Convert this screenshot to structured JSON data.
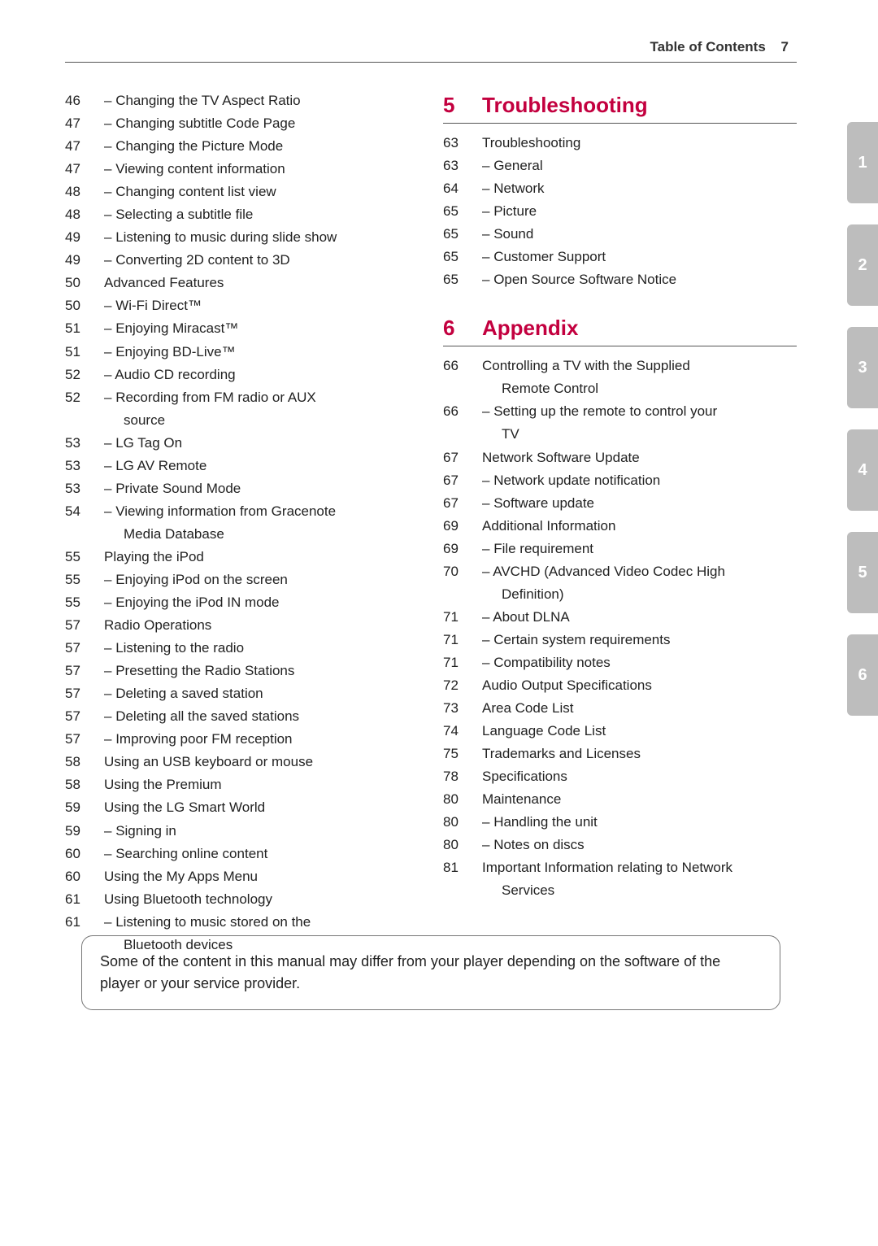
{
  "header": {
    "title": "Table of Contents",
    "page": "7"
  },
  "tabs": [
    "1",
    "2",
    "3",
    "4",
    "5",
    "6"
  ],
  "note": "Some of the content in this manual may differ from your player depending on the software of the player or your service provider.",
  "left_items": [
    {
      "p": "46",
      "t": "Changing the TV Aspect Ratio",
      "sub": true
    },
    {
      "p": "47",
      "t": "Changing subtitle Code Page",
      "sub": true
    },
    {
      "p": "47",
      "t": "Changing the Picture Mode",
      "sub": true
    },
    {
      "p": "47",
      "t": "Viewing content information",
      "sub": true
    },
    {
      "p": "48",
      "t": "Changing content list view",
      "sub": true
    },
    {
      "p": "48",
      "t": "Selecting a subtitle file",
      "sub": true
    },
    {
      "p": "49",
      "t": "Listening to music during slide show",
      "sub": true
    },
    {
      "p": "49",
      "t": "Converting 2D content to 3D",
      "sub": true
    },
    {
      "p": "50",
      "t": "Advanced Features",
      "sub": false
    },
    {
      "p": "50",
      "t": "Wi-Fi Direct™",
      "sub": true
    },
    {
      "p": "51",
      "t": "Enjoying Miracast™",
      "sub": true
    },
    {
      "p": "51",
      "t": "Enjoying BD-Live™",
      "sub": true
    },
    {
      "p": "52",
      "t": "Audio CD recording",
      "sub": true
    },
    {
      "p": "52",
      "t": "Recording from FM radio or AUX source",
      "sub": true,
      "wrap": "source"
    },
    {
      "p": "53",
      "t": "LG Tag On",
      "sub": true
    },
    {
      "p": "53",
      "t": "LG AV Remote",
      "sub": true
    },
    {
      "p": "53",
      "t": "Private Sound Mode",
      "sub": true
    },
    {
      "p": "54",
      "t": "Viewing information from Gracenote Media Database",
      "sub": true,
      "wrap": "Media Database"
    },
    {
      "p": "55",
      "t": "Playing the iPod",
      "sub": false
    },
    {
      "p": "55",
      "t": "Enjoying iPod on the screen",
      "sub": true
    },
    {
      "p": "55",
      "t": "Enjoying the iPod IN mode",
      "sub": true
    },
    {
      "p": "57",
      "t": "Radio Operations",
      "sub": false
    },
    {
      "p": "57",
      "t": "Listening to the radio",
      "sub": true
    },
    {
      "p": "57",
      "t": "Presetting the Radio Stations",
      "sub": true
    },
    {
      "p": "57",
      "t": "Deleting a saved station",
      "sub": true
    },
    {
      "p": "57",
      "t": "Deleting all the saved stations",
      "sub": true
    },
    {
      "p": "57",
      "t": "Improving poor FM reception",
      "sub": true
    },
    {
      "p": "58",
      "t": "Using an USB keyboard or mouse",
      "sub": false
    },
    {
      "p": "58",
      "t": "Using the Premium",
      "sub": false
    },
    {
      "p": "59",
      "t": "Using the LG Smart World",
      "sub": false
    },
    {
      "p": "59",
      "t": "Signing in",
      "sub": true
    },
    {
      "p": "60",
      "t": "Searching online content",
      "sub": true
    },
    {
      "p": "60",
      "t": "Using the My Apps Menu",
      "sub": false
    },
    {
      "p": "61",
      "t": "Using Bluetooth technology",
      "sub": false
    },
    {
      "p": "61",
      "t": "Listening to music stored on the Bluetooth devices",
      "sub": true,
      "wrap": "Bluetooth devices"
    }
  ],
  "sections": [
    {
      "num": "5",
      "title": "Troubleshooting",
      "items": [
        {
          "p": "63",
          "t": "Troubleshooting",
          "sub": false
        },
        {
          "p": "63",
          "t": "General",
          "sub": true
        },
        {
          "p": "64",
          "t": "Network",
          "sub": true
        },
        {
          "p": "65",
          "t": "Picture",
          "sub": true
        },
        {
          "p": "65",
          "t": "Sound",
          "sub": true
        },
        {
          "p": "65",
          "t": "Customer Support",
          "sub": true
        },
        {
          "p": "65",
          "t": "Open Source Software Notice",
          "sub": true
        }
      ]
    },
    {
      "num": "6",
      "title": "Appendix",
      "items": [
        {
          "p": "66",
          "t": "Controlling a TV with the Supplied Remote Control",
          "sub": false,
          "wrap": "Remote Control"
        },
        {
          "p": "66",
          "t": "Setting up the remote to control your TV",
          "sub": true,
          "wrap": "TV"
        },
        {
          "p": "67",
          "t": "Network Software Update",
          "sub": false
        },
        {
          "p": "67",
          "t": "Network update notification",
          "sub": true
        },
        {
          "p": "67",
          "t": "Software update",
          "sub": true
        },
        {
          "p": "69",
          "t": "Additional Information",
          "sub": false
        },
        {
          "p": "69",
          "t": "File requirement",
          "sub": true
        },
        {
          "p": "70",
          "t": "AVCHD (Advanced Video Codec High Definition)",
          "sub": true,
          "wrap": "Definition)"
        },
        {
          "p": "71",
          "t": "About DLNA",
          "sub": true
        },
        {
          "p": "71",
          "t": "Certain system requirements",
          "sub": true
        },
        {
          "p": "71",
          "t": "Compatibility notes",
          "sub": true
        },
        {
          "p": "72",
          "t": "Audio Output Specifications",
          "sub": false
        },
        {
          "p": "73",
          "t": "Area Code List",
          "sub": false
        },
        {
          "p": "74",
          "t": "Language Code List",
          "sub": false
        },
        {
          "p": "75",
          "t": "Trademarks and Licenses",
          "sub": false
        },
        {
          "p": "78",
          "t": "Specifications",
          "sub": false
        },
        {
          "p": "80",
          "t": "Maintenance",
          "sub": false
        },
        {
          "p": "80",
          "t": "Handling the unit",
          "sub": true
        },
        {
          "p": "80",
          "t": "Notes on discs",
          "sub": true
        },
        {
          "p": "81",
          "t": "Important Information relating to Network Services",
          "sub": false,
          "wrap": "Services"
        }
      ]
    }
  ]
}
